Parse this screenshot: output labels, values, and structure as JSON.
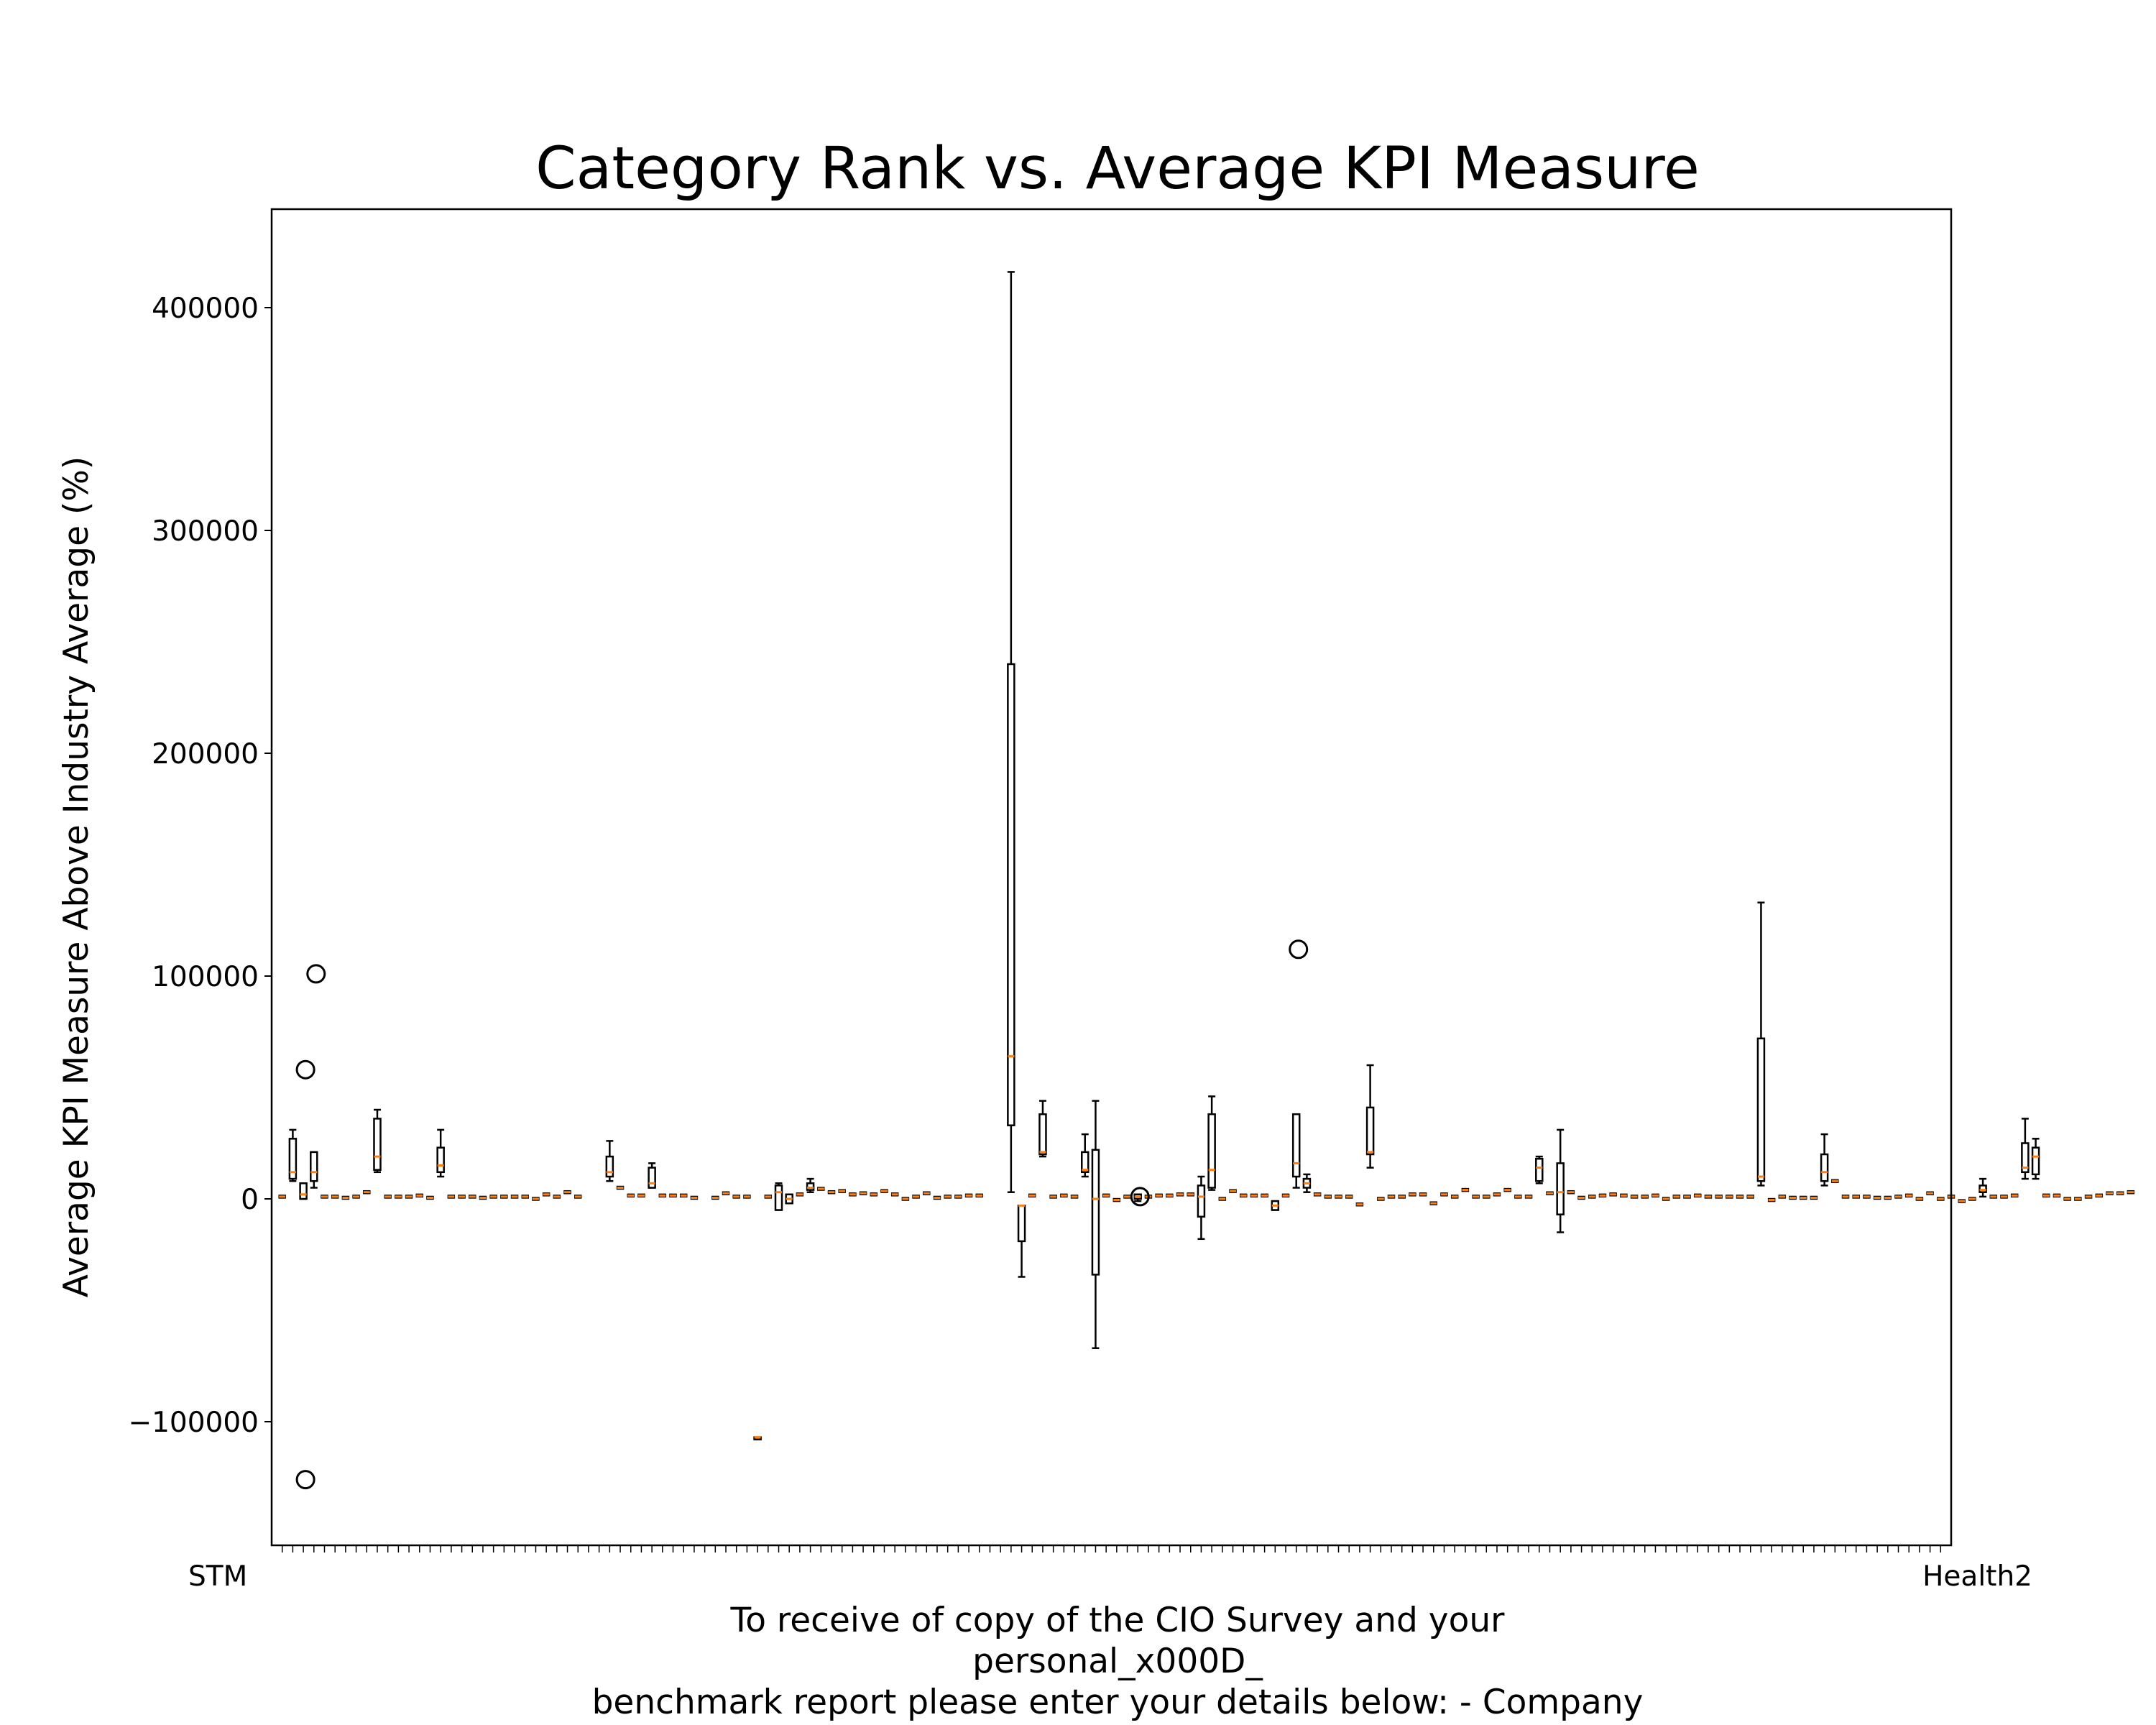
{
  "chart_data": {
    "type": "box",
    "title": "Category Rank vs. Average KPI Measure",
    "ylabel": "Average KPI Measure Above Industry Average (%)",
    "xlabel_lines": [
      "To receive of copy of the CIO Survey and your",
      "personal_x000D_",
      "benchmark report please enter your details below: - Company"
    ],
    "ylim": [
      -150000,
      445000
    ],
    "yticks": [
      -100000,
      0,
      100000,
      200000,
      300000,
      400000
    ],
    "ytick_labels": [
      "−100000",
      "0",
      "100000",
      "200000",
      "300000",
      "400000"
    ],
    "category_count": 158,
    "first_category": "STM",
    "last_category": "Health2",
    "grid": false,
    "colors": {
      "box": "#000000",
      "median": "#ff7f0e",
      "flier": "#000000"
    },
    "boxes": [
      {
        "i": 2,
        "q1": 9000,
        "med": 12000,
        "q3": 27000,
        "lo": 8000,
        "hi": 31000
      },
      {
        "i": 3,
        "q1": 0,
        "med": 2000,
        "q3": 7000,
        "lo": 0,
        "hi": 7000,
        "fliers": [
          58000,
          -126000
        ]
      },
      {
        "i": 4,
        "q1": 8000,
        "med": 12000,
        "q3": 21000,
        "lo": 5000,
        "hi": 21000,
        "fliers": [
          101000
        ]
      },
      {
        "i": 10,
        "q1": 13000,
        "med": 19000,
        "q3": 36000,
        "lo": 12000,
        "hi": 40000
      },
      {
        "i": 16,
        "q1": 12000,
        "med": 15000,
        "q3": 23000,
        "lo": 10000,
        "hi": 31000
      },
      {
        "i": 32,
        "q1": 10000,
        "med": 12000,
        "q3": 19000,
        "lo": 8000,
        "hi": 26000
      },
      {
        "i": 36,
        "q1": 5000,
        "med": 7000,
        "q3": 14000,
        "lo": 5000,
        "hi": 16000
      },
      {
        "i": 46,
        "q1": -107000,
        "med": -107000,
        "q3": -107000,
        "lo": -107000,
        "hi": -107000
      },
      {
        "i": 48,
        "q1": -5000,
        "med": 3000,
        "q3": 6000,
        "lo": -5000,
        "hi": 7000
      },
      {
        "i": 49,
        "q1": -2000,
        "med": 0,
        "q3": 2000,
        "lo": -2000,
        "hi": 2000
      },
      {
        "i": 51,
        "q1": 4000,
        "med": 5000,
        "q3": 7000,
        "lo": 3000,
        "hi": 9000
      },
      {
        "i": 70,
        "q1": 33000,
        "med": 64000,
        "q3": 240000,
        "lo": 3000,
        "hi": 416000
      },
      {
        "i": 71,
        "q1": -19000,
        "med": -3000,
        "q3": -3000,
        "lo": -35000,
        "hi": -3000
      },
      {
        "i": 73,
        "q1": 20000,
        "med": 21000,
        "q3": 38000,
        "lo": 19000,
        "hi": 44000
      },
      {
        "i": 77,
        "q1": 12000,
        "med": 13000,
        "q3": 21000,
        "lo": 10000,
        "hi": 29000
      },
      {
        "i": 78,
        "q1": -34000,
        "med": 0,
        "q3": 22000,
        "lo": -67000,
        "hi": 44000
      },
      {
        "i": 82,
        "q1": 0,
        "med": 1000,
        "q3": 2000,
        "lo": -1000,
        "hi": 2000,
        "fliers": [
          1000
        ]
      },
      {
        "i": 88,
        "q1": -8000,
        "med": 1000,
        "q3": 6000,
        "lo": -18000,
        "hi": 10000
      },
      {
        "i": 89,
        "q1": 5000,
        "med": 13000,
        "q3": 38000,
        "lo": 4000,
        "hi": 46000
      },
      {
        "i": 95,
        "q1": -5000,
        "med": -3000,
        "q3": -1000,
        "lo": -5000,
        "hi": -1000
      },
      {
        "i": 97,
        "q1": 10000,
        "med": 16000,
        "q3": 38000,
        "lo": 5000,
        "hi": 38000,
        "fliers": [
          112000
        ]
      },
      {
        "i": 98,
        "q1": 5000,
        "med": 7000,
        "q3": 9000,
        "lo": 3000,
        "hi": 11000
      },
      {
        "i": 104,
        "q1": 20000,
        "med": 21000,
        "q3": 41000,
        "lo": 14000,
        "hi": 60000
      },
      {
        "i": 120,
        "q1": 8000,
        "med": 14000,
        "q3": 18000,
        "lo": 7000,
        "hi": 19000
      },
      {
        "i": 122,
        "q1": -7000,
        "med": 3000,
        "q3": 16000,
        "lo": -15000,
        "hi": 31000
      },
      {
        "i": 141,
        "q1": 8000,
        "med": 10000,
        "q3": 72000,
        "lo": 6000,
        "hi": 133000
      },
      {
        "i": 147,
        "q1": 8000,
        "med": 12000,
        "q3": 20000,
        "lo": 6000,
        "hi": 29000
      },
      {
        "i": 162,
        "q1": 3000,
        "med": 4000,
        "q3": 6000,
        "lo": 1000,
        "hi": 9000
      },
      {
        "i": 166,
        "q1": 12000,
        "med": 14000,
        "q3": 25000,
        "lo": 9000,
        "hi": 36000
      },
      {
        "i": 167,
        "q1": 11000,
        "med": 19000,
        "q3": 23000,
        "lo": 9000,
        "hi": 27000
      }
    ],
    "medians": [
      [
        1,
        1000
      ],
      [
        5,
        1000
      ],
      [
        6,
        1000
      ],
      [
        7,
        500
      ],
      [
        8,
        1000
      ],
      [
        9,
        3000
      ],
      [
        11,
        1000
      ],
      [
        12,
        1000
      ],
      [
        13,
        1000
      ],
      [
        14,
        1500
      ],
      [
        15,
        500
      ],
      [
        17,
        1000
      ],
      [
        18,
        1000
      ],
      [
        19,
        1000
      ],
      [
        20,
        500
      ],
      [
        21,
        1000
      ],
      [
        22,
        1000
      ],
      [
        23,
        1000
      ],
      [
        24,
        1000
      ],
      [
        25,
        0
      ],
      [
        26,
        2000
      ],
      [
        27,
        1000
      ],
      [
        28,
        3000
      ],
      [
        29,
        1000
      ],
      [
        33,
        5000
      ],
      [
        34,
        1500
      ],
      [
        35,
        1500
      ],
      [
        37,
        1500
      ],
      [
        38,
        1500
      ],
      [
        39,
        1500
      ],
      [
        40,
        500
      ],
      [
        42,
        500
      ],
      [
        43,
        2500
      ],
      [
        44,
        1000
      ],
      [
        45,
        1000
      ],
      [
        47,
        1000
      ],
      [
        50,
        2000
      ],
      [
        52,
        4500
      ],
      [
        53,
        3000
      ],
      [
        54,
        3500
      ],
      [
        55,
        2000
      ],
      [
        56,
        2500
      ],
      [
        57,
        2000
      ],
      [
        58,
        3500
      ],
      [
        59,
        2000
      ],
      [
        60,
        0
      ],
      [
        61,
        1000
      ],
      [
        62,
        2500
      ],
      [
        63,
        500
      ],
      [
        64,
        1000
      ],
      [
        65,
        1000
      ],
      [
        66,
        1500
      ],
      [
        67,
        1500
      ],
      [
        72,
        1500
      ],
      [
        74,
        1000
      ],
      [
        75,
        1500
      ],
      [
        76,
        1000
      ],
      [
        79,
        1500
      ],
      [
        80,
        -500
      ],
      [
        81,
        1000
      ],
      [
        83,
        1000
      ],
      [
        84,
        1500
      ],
      [
        85,
        1500
      ],
      [
        86,
        2000
      ],
      [
        87,
        2000
      ],
      [
        90,
        0
      ],
      [
        91,
        3500
      ],
      [
        92,
        1500
      ],
      [
        93,
        1500
      ],
      [
        94,
        1500
      ],
      [
        96,
        1500
      ],
      [
        99,
        2000
      ],
      [
        100,
        1000
      ],
      [
        101,
        1000
      ],
      [
        102,
        1000
      ],
      [
        103,
        -2500
      ],
      [
        105,
        0
      ],
      [
        106,
        1000
      ],
      [
        107,
        1000
      ],
      [
        108,
        2000
      ],
      [
        109,
        2000
      ],
      [
        110,
        -2000
      ],
      [
        111,
        2000
      ],
      [
        112,
        1000
      ],
      [
        113,
        4000
      ],
      [
        114,
        1000
      ],
      [
        115,
        1000
      ],
      [
        116,
        2000
      ],
      [
        117,
        4000
      ],
      [
        118,
        1000
      ],
      [
        119,
        1000
      ],
      [
        121,
        2500
      ],
      [
        123,
        3000
      ],
      [
        124,
        500
      ],
      [
        125,
        1000
      ],
      [
        126,
        1500
      ],
      [
        127,
        2000
      ],
      [
        128,
        1500
      ],
      [
        129,
        1000
      ],
      [
        130,
        1000
      ],
      [
        131,
        1500
      ],
      [
        132,
        0
      ],
      [
        133,
        1000
      ],
      [
        134,
        1000
      ],
      [
        135,
        1500
      ],
      [
        136,
        1000
      ],
      [
        137,
        1000
      ],
      [
        138,
        1000
      ],
      [
        139,
        1000
      ],
      [
        140,
        1000
      ],
      [
        142,
        -500
      ],
      [
        143,
        1000
      ],
      [
        144,
        500
      ],
      [
        145,
        500
      ],
      [
        146,
        500
      ],
      [
        148,
        8000
      ],
      [
        149,
        1000
      ],
      [
        150,
        1000
      ],
      [
        151,
        1000
      ],
      [
        152,
        500
      ],
      [
        153,
        500
      ],
      [
        154,
        1000
      ],
      [
        155,
        1500
      ],
      [
        156,
        0
      ],
      [
        157,
        2500
      ],
      [
        158,
        0
      ],
      [
        159,
        1000
      ],
      [
        160,
        -1000
      ],
      [
        161,
        0
      ],
      [
        163,
        1000
      ],
      [
        164,
        1000
      ],
      [
        165,
        1500
      ],
      [
        168,
        1500
      ],
      [
        169,
        1500
      ],
      [
        170,
        0
      ],
      [
        171,
        0
      ],
      [
        172,
        1000
      ],
      [
        173,
        1500
      ],
      [
        174,
        2500
      ],
      [
        175,
        2500
      ],
      [
        176,
        3000
      ]
    ]
  }
}
